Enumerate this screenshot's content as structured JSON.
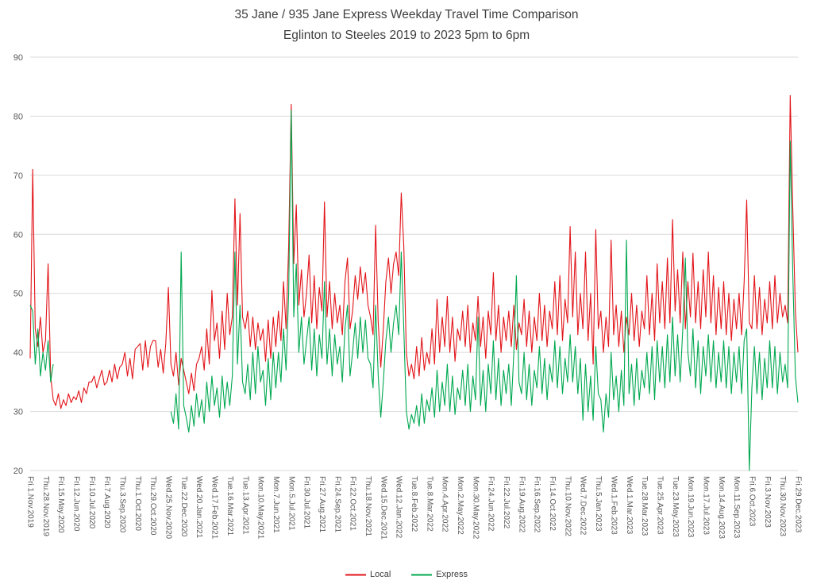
{
  "title": {
    "line1": "35 Jane / 935 Jane Express Weekday Travel Time Comparison",
    "line2": "Eglinton to Steeles 2019 to 2023 5pm to 6pm"
  },
  "legend": [
    {
      "label": "Local",
      "color": "#e21419"
    },
    {
      "label": "Express",
      "color": "#00a850"
    }
  ],
  "colors": {
    "grid": "#d9d9d9",
    "axis_text": "#595959",
    "title_text": "#3f3f3f",
    "background": "#ffffff"
  },
  "chart_data": {
    "type": "line",
    "title": "35 Jane / 935 Jane Express Weekday Travel Time Comparison",
    "subtitle": "Eglinton to Steeles 2019 to 2023 5pm to 6pm",
    "xlabel": "",
    "ylabel": "",
    "ylim": [
      20,
      90
    ],
    "yticks": [
      20,
      30,
      40,
      50,
      60,
      70,
      80,
      90
    ],
    "grid": "horizontal",
    "legend_position": "bottom",
    "x_tick_step": 6,
    "n_points": 301,
    "x_tick_labels": [
      "Fri.1.Nov.2019",
      "Thu.28.Nov.2019",
      "Fri.15.May.2020",
      "Fri.12.Jun.2020",
      "Fri.10.Jul.2020",
      "Fri.7.Aug.2020",
      "Thu.3.Sep.2020",
      "Thu.1.Oct.2020",
      "Thu.29.Oct.2020",
      "Wed.25.Nov.2020",
      "Tue.22.Dec.2020",
      "Wed.20.Jan.2021",
      "Wed.17.Feb.2021",
      "Tue.16.Mar.2021",
      "Tue.13.Apr.2021",
      "Mon.10.May.2021",
      "Mon.7.Jun.2021",
      "Mon.5.Jul.2021",
      "Fri.30.Jul.2021",
      "Fri.27.Aug.2021",
      "Fri.24.Sep.2021",
      "Fri.22.Oct.2021",
      "Thu.18.Nov.2021",
      "Wed.15.Dec.2021",
      "Wed.12.Jan.2022",
      "Tue.8.Feb.2022",
      "Tue.8.Mar.2022",
      "Mon.4.Apr.2022",
      "Mon.2.May.2022",
      "Mon.30.May.2022",
      "Fri.24.Jun.2022",
      "Fri.22.Jul.2022",
      "Fri.19.Aug.2022",
      "Fri.16.Sep.2022",
      "Fri.14.Oct.2022",
      "Thu.10.Nov.2022",
      "Wed.7.Dec.2022",
      "Thu.5.Jan.2023",
      "Wed.1.Feb.2023",
      "Wed.1.Mar.2023",
      "Tue.28.Mar.2023",
      "Tue.25.Apr.2023",
      "Tue.23.May.2023",
      "Mon.19.Jun.2023",
      "Mon.17.Jul.2023",
      "Mon.14.Aug.2023",
      "Mon.11.Sep.2023",
      "Fri.6.Oct.2023",
      "Fri.3.Nov.2023",
      "Thu.30.Nov.2023",
      "Fri.29.Dec.2023"
    ],
    "series": [
      {
        "name": "Local",
        "color": "#e21419",
        "values": [
          39,
          71,
          44,
          41,
          46,
          40,
          42,
          55,
          36,
          32,
          31,
          33,
          30.5,
          32,
          31,
          33,
          31.5,
          32.5,
          32,
          33.5,
          31.5,
          34,
          33,
          35,
          35,
          36,
          34,
          35.5,
          37,
          34.5,
          35,
          37,
          35,
          38,
          35.5,
          37.5,
          38,
          40,
          36,
          39,
          35.5,
          40.5,
          41,
          41.5,
          37,
          42,
          37.5,
          41,
          42,
          42,
          37.5,
          40.5,
          36.5,
          41.5,
          51,
          38,
          36,
          40,
          34.5,
          39,
          37,
          35,
          33,
          36.5,
          33.5,
          38,
          39,
          41,
          37,
          44,
          38,
          50.5,
          42,
          45,
          39,
          47,
          40.5,
          50,
          43,
          46,
          66,
          48,
          63.5,
          46,
          44,
          47,
          41,
          46,
          40.5,
          45,
          42,
          44,
          38.5,
          45.5,
          39,
          46,
          41,
          47,
          42,
          52,
          44,
          58,
          82,
          55,
          65,
          48,
          54,
          46,
          50,
          56.5,
          45,
          53,
          44,
          51,
          47,
          65.5,
          46,
          52,
          44,
          50,
          45,
          48,
          43,
          52,
          56,
          44,
          47,
          53,
          49,
          54.5,
          50,
          53.5,
          48,
          46,
          43,
          61.5,
          45,
          37.5,
          44,
          52,
          56,
          50,
          55,
          57,
          53,
          67,
          58,
          40,
          36,
          38,
          35.5,
          41,
          36,
          42.5,
          37,
          40,
          38,
          44,
          38,
          49,
          40,
          46,
          41,
          49.5,
          40,
          46,
          38.5,
          44,
          42,
          47,
          41,
          48,
          40,
          45,
          42,
          49.5,
          41,
          46,
          39,
          47,
          43,
          53.5,
          42,
          48,
          40,
          46,
          42,
          47,
          41,
          48,
          40.5,
          45,
          43,
          49,
          41,
          47,
          40,
          46,
          42,
          50,
          42,
          48,
          41,
          47,
          44,
          52,
          43,
          53,
          42,
          49,
          45,
          61.3,
          46,
          57,
          43,
          50,
          44,
          57,
          42,
          50,
          38,
          60.8,
          44,
          47,
          40,
          46,
          41,
          59,
          43,
          48,
          41,
          47,
          40,
          46,
          43,
          50,
          42,
          48,
          41,
          47,
          44,
          53,
          43,
          50,
          42,
          55,
          45,
          52,
          44,
          56,
          45,
          62.5,
          47,
          54,
          45,
          57,
          44,
          52,
          46,
          56.8,
          45,
          52,
          44,
          54,
          46,
          57,
          45,
          53,
          43,
          51,
          44,
          52,
          43,
          50,
          42,
          49,
          44,
          50,
          43,
          52,
          65.8,
          45,
          44,
          53,
          44,
          51,
          43,
          49,
          45,
          52,
          44,
          53,
          45,
          50,
          46,
          48,
          45,
          83.5,
          64,
          47,
          40
        ]
      },
      {
        "name": "Express",
        "color": "#00a850",
        "values": [
          48,
          47,
          38,
          44,
          36,
          40,
          37,
          42,
          35,
          38,
          null,
          null,
          null,
          null,
          null,
          null,
          null,
          null,
          null,
          null,
          null,
          null,
          null,
          null,
          null,
          null,
          null,
          null,
          null,
          null,
          null,
          null,
          null,
          null,
          null,
          null,
          null,
          null,
          null,
          null,
          null,
          null,
          null,
          null,
          null,
          null,
          null,
          null,
          null,
          null,
          null,
          null,
          null,
          null,
          null,
          30,
          28,
          33,
          27,
          57,
          31,
          29,
          26.5,
          31,
          27.5,
          33,
          29,
          32,
          28,
          35,
          30,
          36,
          31,
          34,
          29,
          36,
          30.5,
          35,
          31,
          36,
          57,
          38,
          48,
          35,
          33,
          38,
          32,
          40,
          33,
          41,
          35,
          37,
          31,
          39,
          32,
          40,
          34,
          40,
          35,
          44,
          37,
          50,
          81,
          46,
          55,
          40,
          46,
          38,
          42,
          46,
          37,
          44,
          36,
          43,
          39,
          52,
          38,
          44,
          36,
          43,
          38,
          41,
          35,
          44,
          48,
          36,
          40,
          45,
          39,
          46,
          40,
          45.5,
          39,
          38,
          34,
          48,
          36,
          29,
          35,
          42,
          46,
          40,
          45,
          48,
          43,
          57,
          44,
          30,
          27,
          29.5,
          28,
          31,
          27.5,
          33,
          28,
          32,
          30,
          34,
          29,
          37,
          30,
          35,
          31,
          38,
          30,
          36,
          29.5,
          34,
          32,
          37,
          31,
          38,
          30,
          36,
          32,
          46,
          31,
          37,
          30,
          38,
          33,
          42,
          32,
          39,
          31,
          37,
          33,
          38,
          31,
          40,
          53,
          35,
          33,
          40,
          32,
          38,
          31,
          37,
          34,
          41,
          33,
          39,
          32,
          38,
          35,
          42,
          34,
          41,
          33,
          39,
          35,
          43,
          35,
          41,
          33,
          39,
          28.5,
          38,
          30,
          36,
          28.5,
          41,
          33,
          32,
          26.5,
          33,
          29,
          40,
          32,
          36,
          30,
          37,
          31,
          59,
          33,
          38,
          31,
          39,
          32,
          37,
          34,
          40,
          33,
          41,
          32,
          42,
          35,
          41,
          34,
          43,
          35,
          46,
          36,
          43,
          35,
          44,
          56,
          40,
          36,
          44,
          34,
          42,
          33,
          41,
          36,
          43,
          35,
          42,
          34,
          40,
          35,
          42,
          34,
          41,
          33,
          40,
          35,
          41,
          33,
          42,
          44,
          20,
          34,
          41,
          33,
          40,
          32,
          39,
          34,
          42,
          34,
          41,
          33,
          40,
          35,
          38,
          34,
          75.8,
          53,
          36,
          31.5
        ]
      }
    ]
  }
}
